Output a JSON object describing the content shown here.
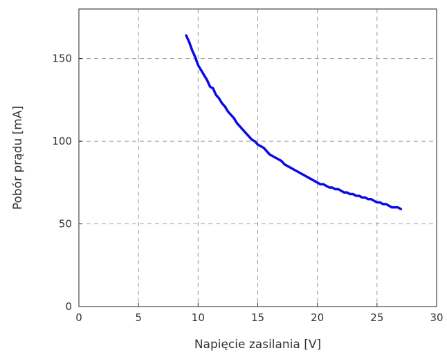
{
  "chart_data": {
    "type": "line",
    "title": "",
    "xlabel": "Napięcie zasilania [V]",
    "ylabel": "Pobór prądu [mA]",
    "xlim": [
      0,
      30
    ],
    "ylim": [
      0,
      180
    ],
    "xticks": [
      0,
      5,
      10,
      15,
      20,
      25,
      30
    ],
    "yticks": [
      0,
      50,
      100,
      150
    ],
    "xtick_labels": [
      "0",
      "5",
      "10",
      "15",
      "20",
      "25",
      "30"
    ],
    "ytick_labels": [
      "0",
      "50",
      "100",
      "150"
    ],
    "grid": true,
    "grid_style": "dashed",
    "legend": "none",
    "series": [
      {
        "color": "#0a0ae6",
        "x": [
          9.0,
          9.25,
          9.5,
          9.75,
          10.0,
          10.25,
          10.5,
          10.75,
          11.0,
          11.25,
          11.5,
          11.75,
          12.0,
          12.25,
          12.5,
          12.75,
          13.0,
          13.25,
          13.5,
          13.75,
          14.0,
          14.25,
          14.5,
          14.75,
          15.0,
          15.25,
          15.5,
          15.75,
          16.0,
          16.25,
          16.5,
          16.75,
          17.0,
          17.25,
          17.5,
          17.75,
          18.0,
          18.25,
          18.5,
          18.75,
          19.0,
          19.25,
          19.5,
          19.75,
          20.0,
          20.25,
          20.5,
          20.75,
          21.0,
          21.25,
          21.5,
          21.75,
          22.0,
          22.25,
          22.5,
          22.75,
          23.0,
          23.25,
          23.5,
          23.75,
          24.0,
          24.25,
          24.5,
          24.75,
          25.0,
          25.25,
          25.5,
          25.75,
          26.0,
          26.25,
          26.5,
          26.75,
          27.0
        ],
        "y": [
          164,
          160,
          155,
          151,
          146,
          143,
          140,
          137,
          133,
          132,
          128,
          126,
          123,
          121,
          118,
          116,
          114,
          111,
          109,
          107,
          105,
          103,
          101,
          100,
          98,
          97,
          96,
          94,
          92,
          91,
          90,
          89,
          88,
          86,
          85,
          84,
          83,
          82,
          81,
          80,
          79,
          78,
          77,
          76,
          75,
          74,
          74,
          73,
          72,
          72,
          71,
          71,
          70,
          69,
          69,
          68,
          68,
          67,
          67,
          66,
          66,
          65,
          65,
          64,
          63,
          63,
          62,
          62,
          61,
          60,
          60,
          60,
          59
        ]
      }
    ]
  }
}
